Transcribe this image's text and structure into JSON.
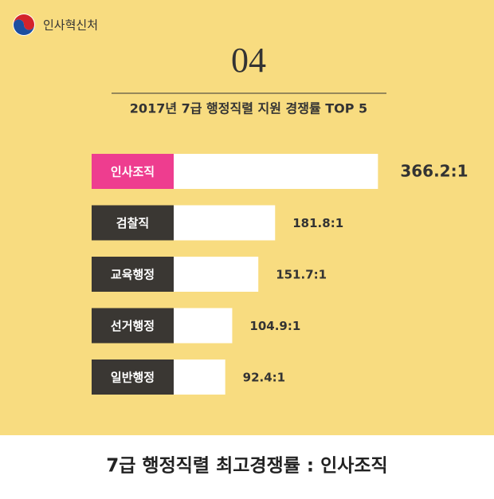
{
  "header": {
    "brand": "인사혁신처"
  },
  "chart_data": {
    "type": "hbar",
    "title": "04",
    "subtitle": "2017년 7급 행정직렬 지원 경쟁률 TOP 5",
    "categories": [
      "인사조직",
      "검찰직",
      "교육행정",
      "선거행정",
      "일반행정"
    ],
    "values": [
      366.2,
      181.8,
      151.7,
      104.9,
      92.4
    ],
    "value_labels": [
      "366.2:1",
      "181.8:1",
      "151.7:1",
      "104.9:1",
      "92.4:1"
    ],
    "color": "#ffffff",
    "label_colors": [
      "#ee3d8f",
      "#3a3733",
      "#3a3733",
      "#3a3733",
      "#3a3733"
    ],
    "xlim": [
      0,
      400
    ]
  },
  "footer": {
    "text": "7급 행정직렬 최고경쟁률 : 인사조직"
  }
}
